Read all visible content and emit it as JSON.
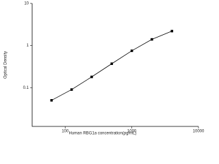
{
  "chart_data": {
    "type": "scatter",
    "x_label": "Human RBG1a concentration(pg/mL)",
    "y_label": "Optical Density",
    "x": [
      62.5,
      125,
      250,
      500,
      1000,
      2000,
      4000
    ],
    "series": [
      {
        "color": "#000000",
        "values": [
          0.05,
          0.09,
          0.18,
          0.37,
          0.75,
          1.4,
          2.2
        ]
      }
    ],
    "xlim": [
      32,
      10000
    ],
    "ylim": [
      0.012,
      10
    ],
    "xticks": [
      100,
      1000,
      10000
    ],
    "yticks": [
      0.1,
      1,
      10
    ],
    "log_x": true,
    "log_y": true
  }
}
